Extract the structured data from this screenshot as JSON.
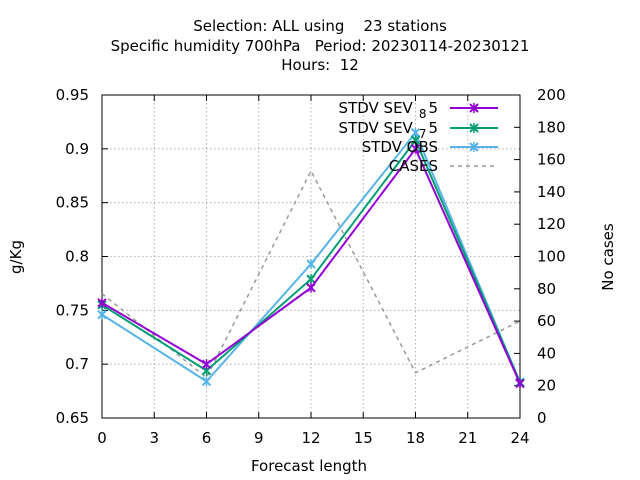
{
  "chart_data": {
    "type": "line",
    "title_lines": [
      "Selection: ALL using    23 stations",
      "Specific humidity 700hPa   Period: 20230114-20230121",
      "Hours:  12"
    ],
    "xlabel": "Forecast length",
    "ylabel": "g/Kg",
    "y2label": "No cases",
    "x": [
      0,
      6,
      12,
      18,
      24
    ],
    "xticks": [
      0,
      3,
      6,
      9,
      12,
      15,
      18,
      21,
      24
    ],
    "xlim": [
      0,
      24
    ],
    "ylim": [
      0.65,
      0.95
    ],
    "yticks": [
      0.65,
      0.7,
      0.75,
      0.8,
      0.85,
      0.9,
      0.95
    ],
    "y2lim": [
      0,
      200
    ],
    "y2ticks": [
      0,
      20,
      40,
      60,
      80,
      100,
      120,
      140,
      160,
      180,
      200
    ],
    "grid": true,
    "legend_position": "top-right",
    "series": [
      {
        "name": "STDV SEV_8 5",
        "legend_base": "STDV SEV",
        "legend_sub": "8",
        "legend_tail": "5",
        "axis": "y",
        "color": "#9400d3",
        "marker": "x",
        "values": [
          0.757,
          0.7,
          0.771,
          0.9,
          0.682
        ]
      },
      {
        "name": "STDV SEV_7 5",
        "legend_base": "STDV SEV",
        "legend_sub": "7",
        "legend_tail": "5",
        "axis": "y",
        "color": "#009e73",
        "marker": "x",
        "values": [
          0.755,
          0.694,
          0.779,
          0.908,
          0.683
        ]
      },
      {
        "name": "STDV OBS",
        "legend_base": "STDV OBS",
        "legend_sub": "",
        "legend_tail": "",
        "axis": "y",
        "color": "#56b4e9",
        "marker": "x",
        "values": [
          0.746,
          0.684,
          0.793,
          0.915,
          0.683
        ]
      },
      {
        "name": "CASES",
        "legend_base": "CASES",
        "legend_sub": "",
        "legend_tail": "",
        "axis": "y2",
        "color": "#999999",
        "dashed": true,
        "values": [
          77,
          25,
          153,
          28,
          60
        ]
      }
    ]
  }
}
